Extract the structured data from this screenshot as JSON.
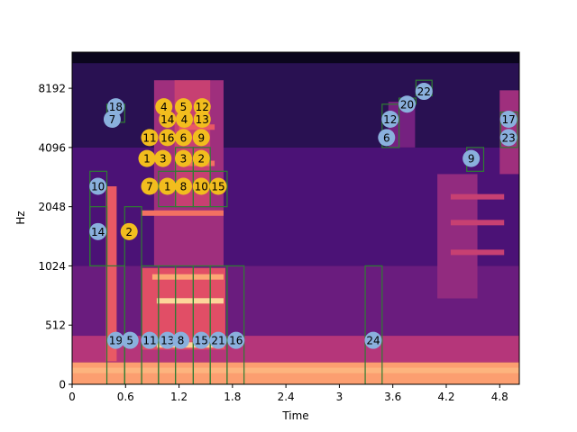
{
  "chart_data": {
    "type": "heatmap",
    "title": "",
    "xlabel": "Time",
    "ylabel": "Hz",
    "x_ticks": [
      "0",
      "0.6",
      "1.2",
      "1.8",
      "2.4",
      "3",
      "3.6",
      "4.2",
      "4.8"
    ],
    "y_ticks": [
      "0",
      "512",
      "1024",
      "2048",
      "4096",
      "8192"
    ],
    "xlim": [
      0,
      5.02
    ],
    "y_scale": "symlog",
    "colormap": "magma",
    "colors": {
      "blue_marker": "#8ab0dd",
      "yellow_marker": "#f2bd1e",
      "box": "#2e7d32"
    },
    "spectrogram_bands": [
      {
        "t0": 0.0,
        "t1": 5.02,
        "f0": 0,
        "f1": 190,
        "level": 0.8
      },
      {
        "t0": 0.0,
        "t1": 5.02,
        "f0": 190,
        "f1": 420,
        "level": 0.5
      },
      {
        "t0": 0.0,
        "t1": 5.02,
        "f0": 420,
        "f1": 1024,
        "level": 0.32
      },
      {
        "t0": 0.0,
        "t1": 5.02,
        "f0": 1024,
        "f1": 4096,
        "level": 0.24
      },
      {
        "t0": 0.0,
        "t1": 5.02,
        "f0": 4096,
        "f1": 11000,
        "level": 0.16
      },
      {
        "t0": 0.0,
        "t1": 5.02,
        "f0": 11000,
        "f1": 12500,
        "level": 0.05
      },
      {
        "t0": 0.78,
        "t1": 1.72,
        "f0": 300,
        "f1": 1000,
        "level": 0.62
      },
      {
        "t0": 0.92,
        "t1": 1.7,
        "f0": 1024,
        "f1": 9000,
        "level": 0.45
      },
      {
        "t0": 1.15,
        "t1": 1.55,
        "f0": 2048,
        "f1": 9000,
        "level": 0.55
      },
      {
        "t0": 0.38,
        "t1": 0.5,
        "f0": 200,
        "f1": 2600,
        "level": 0.65
      },
      {
        "t0": 4.1,
        "t1": 4.55,
        "f0": 700,
        "f1": 3000,
        "level": 0.42
      },
      {
        "t0": 4.8,
        "t1": 5.02,
        "f0": 3000,
        "f1": 8000,
        "level": 0.45
      },
      {
        "t0": 3.55,
        "t1": 3.85,
        "f0": 4096,
        "f1": 7000,
        "level": 0.35
      }
    ],
    "spectrogram_lines": [
      {
        "t0": 0.95,
        "t1": 1.7,
        "f": 340,
        "level": 0.92
      },
      {
        "t0": 0.95,
        "t1": 1.7,
        "f": 680,
        "level": 0.92
      },
      {
        "t0": 0.9,
        "t1": 1.7,
        "f": 900,
        "level": 0.82
      },
      {
        "t0": 0.78,
        "t1": 1.7,
        "f": 1900,
        "level": 0.7
      },
      {
        "t0": 1.2,
        "t1": 1.6,
        "f": 3400,
        "level": 0.7
      },
      {
        "t0": 1.2,
        "t1": 1.6,
        "f": 5200,
        "level": 0.65
      },
      {
        "t0": 0.0,
        "t1": 5.02,
        "f": 120,
        "level": 0.85
      },
      {
        "t0": 4.25,
        "t1": 4.85,
        "f": 1200,
        "level": 0.55
      },
      {
        "t0": 4.25,
        "t1": 4.85,
        "f": 1700,
        "level": 0.55
      },
      {
        "t0": 4.25,
        "t1": 4.85,
        "f": 2300,
        "level": 0.55
      }
    ],
    "boxes": [
      {
        "t0": 0.2,
        "t1": 0.39,
        "f0": 1024,
        "f1": 3100
      },
      {
        "t0": 0.2,
        "t1": 0.39,
        "f0": 1024,
        "f1": 2048
      },
      {
        "t0": 0.39,
        "t1": 0.59,
        "f0": 0,
        "f1": 1024
      },
      {
        "t0": 0.39,
        "t1": 0.59,
        "f0": 5500,
        "f1": 6800
      },
      {
        "t0": 0.59,
        "t1": 0.78,
        "f0": 0,
        "f1": 2048
      },
      {
        "t0": 0.78,
        "t1": 0.97,
        "f0": 0,
        "f1": 1024
      },
      {
        "t0": 0.97,
        "t1": 1.16,
        "f0": 0,
        "f1": 1024
      },
      {
        "t0": 1.16,
        "t1": 1.36,
        "f0": 0,
        "f1": 1024
      },
      {
        "t0": 1.36,
        "t1": 1.55,
        "f0": 0,
        "f1": 1024
      },
      {
        "t0": 1.55,
        "t1": 1.74,
        "f0": 0,
        "f1": 1024
      },
      {
        "t0": 1.74,
        "t1": 1.93,
        "f0": 0,
        "f1": 1024
      },
      {
        "t0": 0.97,
        "t1": 1.16,
        "f0": 2048,
        "f1": 3100
      },
      {
        "t0": 1.16,
        "t1": 1.36,
        "f0": 2048,
        "f1": 3100
      },
      {
        "t0": 1.36,
        "t1": 1.55,
        "f0": 2048,
        "f1": 3100
      },
      {
        "t0": 1.55,
        "t1": 1.74,
        "f0": 2048,
        "f1": 3100
      },
      {
        "t0": 1.16,
        "t1": 1.36,
        "f0": 3100,
        "f1": 4096
      },
      {
        "t0": 1.36,
        "t1": 1.55,
        "f0": 3100,
        "f1": 4096
      },
      {
        "t0": 3.29,
        "t1": 3.48,
        "f0": 0,
        "f1": 1024
      },
      {
        "t0": 3.48,
        "t1": 3.67,
        "f0": 4096,
        "f1": 6800
      },
      {
        "t0": 3.67,
        "t1": 3.86,
        "f0": 6800,
        "f1": 7300
      },
      {
        "t0": 3.86,
        "t1": 4.04,
        "f0": 7500,
        "f1": 9000
      },
      {
        "t0": 4.43,
        "t1": 4.62,
        "f0": 3100,
        "f1": 4096
      },
      {
        "t0": 4.81,
        "t1": 5.0,
        "f0": 4096,
        "f1": 6200
      }
    ],
    "blue_markers": [
      {
        "label": "18",
        "t": 0.49,
        "f": 6600
      },
      {
        "label": "7",
        "t": 0.45,
        "f": 5700
      },
      {
        "label": "10",
        "t": 0.29,
        "f": 2600
      },
      {
        "label": "14",
        "t": 0.29,
        "f": 1530
      },
      {
        "label": "19",
        "t": 0.49,
        "f": 380
      },
      {
        "label": "5",
        "t": 0.65,
        "f": 380
      },
      {
        "label": "11",
        "t": 0.87,
        "f": 380
      },
      {
        "label": "13",
        "t": 1.07,
        "f": 380
      },
      {
        "label": "8",
        "t": 1.22,
        "f": 380
      },
      {
        "label": "15",
        "t": 1.45,
        "f": 380
      },
      {
        "label": "21",
        "t": 1.64,
        "f": 380
      },
      {
        "label": "16",
        "t": 1.84,
        "f": 380
      },
      {
        "label": "24",
        "t": 3.38,
        "f": 380
      },
      {
        "label": "12",
        "t": 3.57,
        "f": 5700
      },
      {
        "label": "6",
        "t": 3.53,
        "f": 4600
      },
      {
        "label": "20",
        "t": 3.76,
        "f": 6800
      },
      {
        "label": "22",
        "t": 3.95,
        "f": 7900
      },
      {
        "label": "9",
        "t": 4.48,
        "f": 3600
      },
      {
        "label": "17",
        "t": 4.9,
        "f": 5700
      },
      {
        "label": "23",
        "t": 4.9,
        "f": 4600
      }
    ],
    "yellow_markers": [
      {
        "label": "4",
        "t": 1.03,
        "f": 6600
      },
      {
        "label": "5",
        "t": 1.25,
        "f": 6600
      },
      {
        "label": "12",
        "t": 1.46,
        "f": 6600
      },
      {
        "label": "14",
        "t": 1.07,
        "f": 5700
      },
      {
        "label": "4",
        "t": 1.26,
        "f": 5700
      },
      {
        "label": "13",
        "t": 1.46,
        "f": 5700
      },
      {
        "label": "11",
        "t": 0.87,
        "f": 4600
      },
      {
        "label": "16",
        "t": 1.07,
        "f": 4600
      },
      {
        "label": "6",
        "t": 1.25,
        "f": 4600
      },
      {
        "label": "9",
        "t": 1.45,
        "f": 4600
      },
      {
        "label": "1",
        "t": 0.84,
        "f": 3600
      },
      {
        "label": "3",
        "t": 1.02,
        "f": 3600
      },
      {
        "label": "3",
        "t": 1.25,
        "f": 3600
      },
      {
        "label": "2",
        "t": 1.45,
        "f": 3600
      },
      {
        "label": "7",
        "t": 0.87,
        "f": 2600
      },
      {
        "label": "1",
        "t": 1.07,
        "f": 2600
      },
      {
        "label": "8",
        "t": 1.25,
        "f": 2600
      },
      {
        "label": "10",
        "t": 1.45,
        "f": 2600
      },
      {
        "label": "15",
        "t": 1.64,
        "f": 2600
      },
      {
        "label": "2",
        "t": 0.64,
        "f": 1530
      }
    ]
  }
}
